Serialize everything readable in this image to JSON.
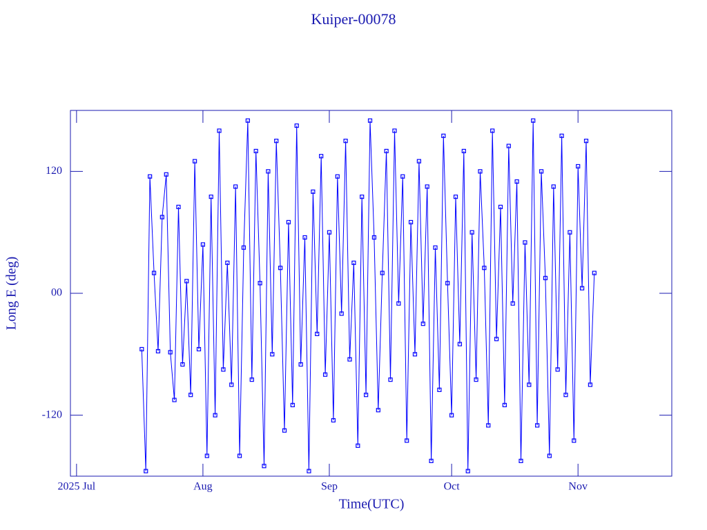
{
  "chart_data": {
    "type": "line",
    "title": "Kuiper-00078",
    "xlabel": "Time(UTC)",
    "ylabel": "Long E (deg)",
    "color": "#0000ff",
    "xlim": [
      -1.5,
      146
    ],
    "ylim": [
      -180,
      180
    ],
    "xticks": [
      {
        "value": 0,
        "label": "2025 Jul"
      },
      {
        "value": 31,
        "label": "Aug"
      },
      {
        "value": 62,
        "label": "Sep"
      },
      {
        "value": 92,
        "label": "Oct"
      },
      {
        "value": 123,
        "label": "Nov"
      }
    ],
    "yticks": [
      -120,
      {
        "value": 0,
        "label": "00"
      },
      120
    ],
    "x": [
      16,
      17,
      18,
      19,
      20,
      21,
      22,
      23,
      24,
      25,
      26,
      27,
      28,
      29,
      30,
      31,
      32,
      33,
      34,
      35,
      36,
      37,
      38,
      39,
      40,
      41,
      42,
      43,
      44,
      45,
      46,
      47,
      48,
      49,
      50,
      51,
      52,
      53,
      54,
      55,
      56,
      57,
      58,
      59,
      60,
      61,
      62,
      63,
      64,
      65,
      66,
      67,
      68,
      69,
      70,
      71,
      72,
      73,
      74,
      75,
      76,
      77,
      78,
      79,
      80,
      81,
      82,
      83,
      84,
      85,
      86,
      87,
      88,
      89,
      90,
      91,
      92,
      93,
      94,
      95,
      96,
      97,
      98,
      99,
      100,
      101,
      102,
      103,
      104,
      105,
      106,
      107,
      108,
      109,
      110,
      111,
      112,
      113,
      114,
      115,
      116,
      117,
      118,
      119,
      120,
      121,
      122,
      123,
      124,
      125,
      126,
      127
    ],
    "values": [
      -55,
      -175,
      115,
      20,
      -57,
      75,
      117,
      -58,
      -105,
      85,
      -70,
      12,
      -100,
      130,
      -55,
      48,
      -160,
      95,
      -120,
      160,
      -75,
      30,
      -90,
      105,
      -160,
      45,
      170,
      -85,
      140,
      10,
      -170,
      120,
      -60,
      150,
      25,
      -135,
      70,
      -110,
      165,
      -70,
      55,
      -175,
      100,
      -40,
      135,
      -80,
      60,
      -125,
      115,
      -20,
      150,
      -65,
      30,
      -150,
      95,
      -100,
      170,
      55,
      -115,
      20,
      140,
      -85,
      160,
      -10,
      115,
      -145,
      70,
      -60,
      130,
      -30,
      105,
      -165,
      45,
      -95,
      155,
      10,
      -120,
      95,
      -50,
      140,
      -175,
      60,
      -85,
      120,
      25,
      -130,
      160,
      -45,
      85,
      -110,
      145,
      -10,
      110,
      -165,
      50,
      -90,
      170,
      -130,
      120,
      15,
      -160,
      105,
      -75,
      155,
      -100,
      60,
      -145,
      125,
      5,
      150,
      -90,
      20
    ]
  }
}
